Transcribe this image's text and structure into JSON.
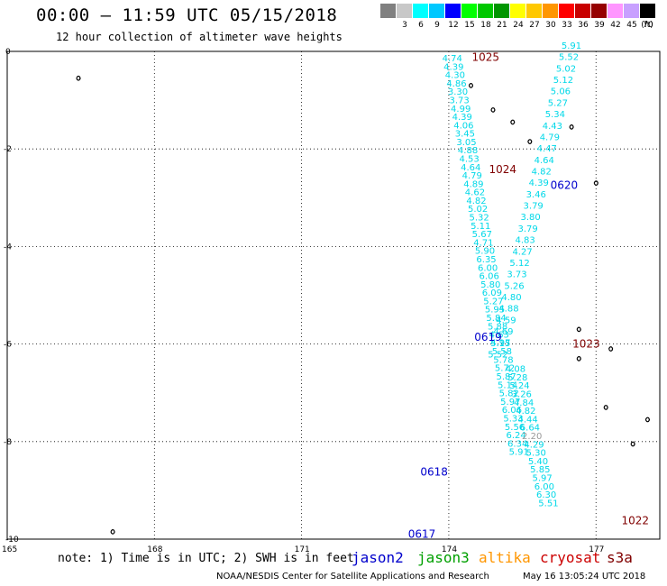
{
  "title": "00:00 – 11:59 UTC 05/15/2018",
  "subtitle": "12 hour collection of altimeter wave heights",
  "scale": {
    "unit": "(ft)",
    "bins": [
      {
        "label": "",
        "color": "#808080"
      },
      {
        "label": "3",
        "color": "#c8c8c8"
      },
      {
        "label": "6",
        "color": "#00ffff"
      },
      {
        "label": "9",
        "color": "#00c8ff"
      },
      {
        "label": "12",
        "color": "#0000ff"
      },
      {
        "label": "15",
        "color": "#00ff00"
      },
      {
        "label": "18",
        "color": "#00c800"
      },
      {
        "label": "21",
        "color": "#009600"
      },
      {
        "label": "24",
        "color": "#ffff00"
      },
      {
        "label": "27",
        "color": "#ffc800"
      },
      {
        "label": "30",
        "color": "#ff9600"
      },
      {
        "label": "33",
        "color": "#ff0000"
      },
      {
        "label": "36",
        "color": "#c80000"
      },
      {
        "label": "39",
        "color": "#960000"
      },
      {
        "label": "42",
        "color": "#ff96ff"
      },
      {
        "label": "45",
        "color": "#c8a0ff"
      },
      {
        "label": "70",
        "color": "#000000"
      }
    ]
  },
  "axes": {
    "x_ticks": [
      "165",
      "168",
      "171",
      "174",
      "177"
    ],
    "y_ticks": [
      "0",
      "-2",
      "-4",
      "-6",
      "-8",
      "-10"
    ],
    "x_range": [
      165,
      178.3
    ],
    "y_range": [
      -10,
      0
    ],
    "grid": "dotted"
  },
  "colors": {
    "swh": "#00d8e8",
    "swh_low": "#9a9a9a",
    "pass_time": "#0000cc",
    "pressure": "#800000"
  },
  "tracks": [
    {
      "name": "track-a",
      "start": [
        174.07,
        -0.13
      ],
      "end": [
        175.43,
        -8.2
      ],
      "values": [
        "4.74",
        "4.39",
        "4.30",
        "4.86",
        "3.30",
        "3.73",
        "4.99",
        "4.39",
        "4.06",
        "3.45",
        "3.05",
        "4.88",
        "4.53",
        "4.64",
        "4.79",
        "4.89",
        "4.62",
        "4.82",
        "5.02",
        "5.32",
        "5.11",
        "5.67",
        "4.71",
        "5.90",
        "6.35",
        "6.00",
        "6.06",
        "5.80",
        "6.09",
        "5.27",
        "5.95",
        "5.84",
        "5.88",
        "4.63",
        "5.15",
        "5.58",
        "5.78",
        "5.72",
        "5.87",
        "5.14",
        "5.82",
        "5.97",
        "6.06",
        "5.33",
        "5.56",
        "6.24",
        "6.34",
        "5.91"
      ]
    },
    {
      "name": "track-b",
      "start": [
        176.5,
        0.13
      ],
      "end": [
        175.0,
        -6.2
      ],
      "values": [
        "5.91",
        "5.52",
        "5.02",
        "5.12",
        "5.06",
        "5.27",
        "5.34",
        "4.43",
        "4.79",
        "4.47",
        "4.64",
        "4.82",
        "4.39",
        "3.46",
        "3.79",
        "3.80",
        "3.79",
        "4.83",
        "4.27",
        "5.12",
        "3.73",
        "5.26",
        "4.80",
        "4.88",
        "4.59",
        "4.69",
        "4.97",
        "5.52"
      ]
    },
    {
      "name": "track-c",
      "start": [
        175.36,
        -6.5
      ],
      "end": [
        176.03,
        -9.25
      ],
      "values": [
        "4.08",
        "5.28",
        "5.24",
        "3.26",
        "4.84",
        "4.82",
        "4.44",
        "6.64",
        "2.20",
        "4.29",
        "5.30",
        "5.40",
        "5.85",
        "5.97",
        "6.00",
        "6.30",
        "5.51"
      ]
    }
  ],
  "pass_times": [
    {
      "label": "0620",
      "lon": 176.35,
      "lat": -2.73
    },
    {
      "label": "0619",
      "lon": 174.8,
      "lat": -5.84
    },
    {
      "label": "0618",
      "lon": 173.7,
      "lat": -8.6
    },
    {
      "label": "0617",
      "lon": 173.45,
      "lat": -9.88
    }
  ],
  "pressures": [
    {
      "label": "1025",
      "lon": 174.75,
      "lat": -0.1
    },
    {
      "label": "1024",
      "lon": 175.1,
      "lat": -2.4
    },
    {
      "label": "1023",
      "lon": 176.8,
      "lat": -5.98
    },
    {
      "label": "1022",
      "lon": 177.8,
      "lat": -9.6
    }
  ],
  "islands": [
    {
      "lon": 166.45,
      "lat": -0.55
    },
    {
      "lon": 174.45,
      "lat": -0.7
    },
    {
      "lon": 174.9,
      "lat": -1.2
    },
    {
      "lon": 175.3,
      "lat": -1.45
    },
    {
      "lon": 176.5,
      "lat": -1.55
    },
    {
      "lon": 175.65,
      "lat": -1.85
    },
    {
      "lon": 177.0,
      "lat": -2.7
    },
    {
      "lon": 176.65,
      "lat": -5.7
    },
    {
      "lon": 176.65,
      "lat": -6.3
    },
    {
      "lon": 177.3,
      "lat": -6.1
    },
    {
      "lon": 177.2,
      "lat": -7.3
    },
    {
      "lon": 178.05,
      "lat": -7.55
    },
    {
      "lon": 177.75,
      "lat": -8.05
    },
    {
      "lon": 167.15,
      "lat": -9.85
    }
  ],
  "note": "note:  1) Time is in UTC; 2) SWH is in feet",
  "satellites": [
    {
      "name": "jason2",
      "color": "#0000cc"
    },
    {
      "name": "jason3",
      "color": "#00a000"
    },
    {
      "name": "altika",
      "color": "#ff9600"
    },
    {
      "name": "cryosat",
      "color": "#cc0000"
    },
    {
      "name": "s3a",
      "color": "#800000"
    }
  ],
  "footer": "NOAA/NESDIS Center for Satellite Applications and Research",
  "footer_time": "May 16 13:05:24 UTC 2018"
}
